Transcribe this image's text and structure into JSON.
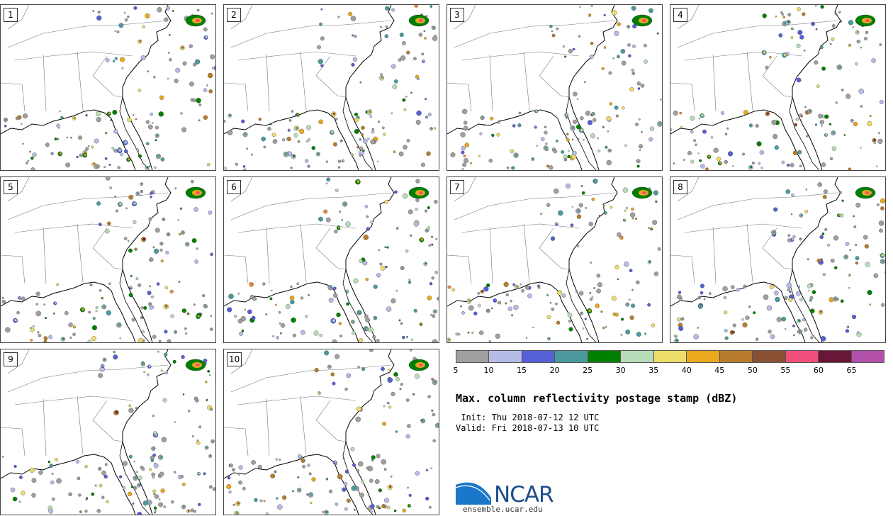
{
  "panels": [
    {
      "label": "1"
    },
    {
      "label": "2"
    },
    {
      "label": "3"
    },
    {
      "label": "4"
    },
    {
      "label": "5"
    },
    {
      "label": "6"
    },
    {
      "label": "7"
    },
    {
      "label": "8"
    },
    {
      "label": "9"
    },
    {
      "label": "10"
    }
  ],
  "colorbar": {
    "ticks": [
      "5",
      "10",
      "15",
      "20",
      "25",
      "30",
      "35",
      "40",
      "45",
      "50",
      "55",
      "60",
      "65"
    ],
    "colors": [
      "#a0a0a0",
      "#b4bce6",
      "#5660d6",
      "#4c9a9e",
      "#008000",
      "#b8dcb8",
      "#ecdc68",
      "#eaa81e",
      "#b87c2c",
      "#8a5034",
      "#f0507c",
      "#6a1636",
      "#b250aa"
    ]
  },
  "title": "Max. column reflectivity postage stamp (dBZ)",
  "init": " Init: Thu 2018-07-12 12 UTC",
  "valid": "Valid: Fri 2018-07-13 10 UTC",
  "logo": {
    "name": "NCAR",
    "site": "ensemble.ucar.edu"
  }
}
